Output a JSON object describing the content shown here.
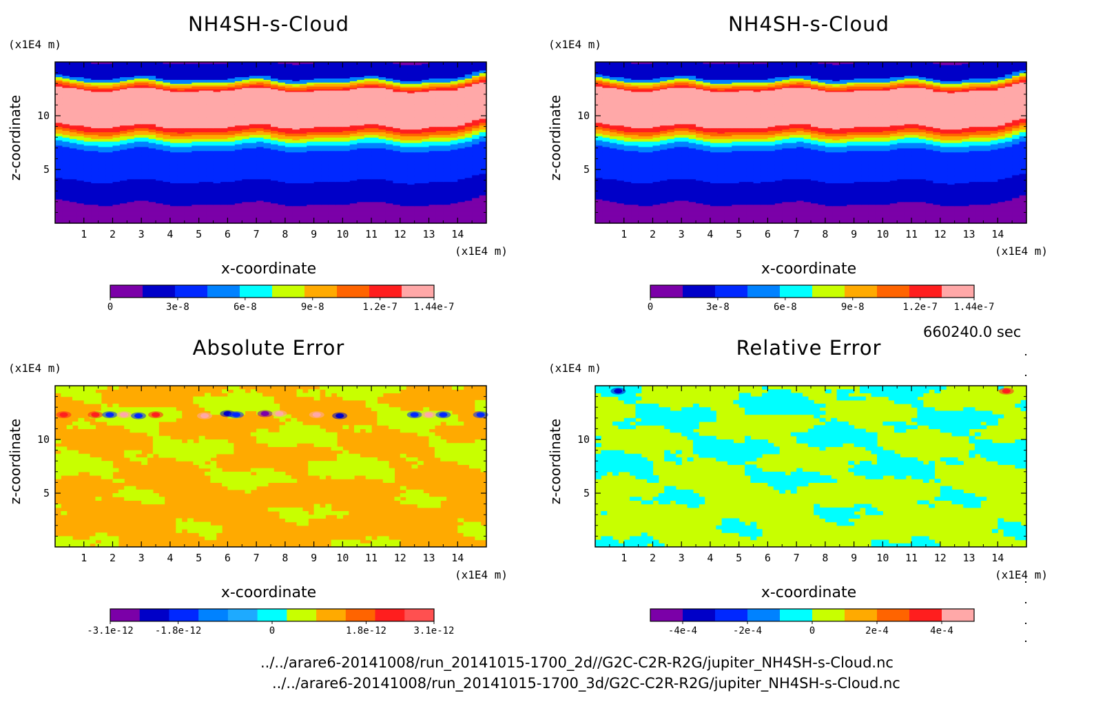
{
  "time_label": "660240.0 sec",
  "file_paths": [
    "../../arare6-20141008/run_20141015-1700_2d//G2C-C2R-R2G/jupiter_NH4SH-s-Cloud.nc",
    "../../arare6-20141008/run_20141015-1700_3d/G2C-C2R-R2G/jupiter_NH4SH-s-Cloud.nc"
  ],
  "colors": {
    "levels10": [
      "#7b00a8",
      "#0000c8",
      "#0028ff",
      "#0082ff",
      "#00ffff",
      "#c8ff00",
      "#ffaa00",
      "#ff6400",
      "#ff1e1e",
      "#ffa8a8"
    ],
    "levels11": [
      "#7b00a8",
      "#0000c8",
      "#0028ff",
      "#0082ff",
      "#1eaaff",
      "#00ffff",
      "#c8ff00",
      "#ffaa00",
      "#ff6400",
      "#ff1e1e",
      "#ff5050"
    ]
  },
  "chart_data": [
    {
      "type": "heatmap",
      "title": "NH4SH-s-Cloud",
      "xlabel": "x-coordinate",
      "ylabel": "z-coordinate",
      "x_unit": "(x1E4 m)",
      "z_unit": "(x1E4 m)",
      "xlim": [
        0,
        15
      ],
      "ylim": [
        0,
        15
      ],
      "x_ticks": [
        "1",
        "2",
        "3",
        "4",
        "5",
        "6",
        "7",
        "8",
        "9",
        "10",
        "11",
        "12",
        "13",
        "14"
      ],
      "y_ticks": [
        "5",
        "10"
      ],
      "colorbar_ticks": [
        "0",
        "3e-8",
        "6e-8",
        "9e-8",
        "1.2e-7",
        "1.44e-7"
      ],
      "colorbar_range": [
        0,
        1.44e-07
      ],
      "profile_z": [
        0,
        1.5,
        1.8,
        3.5,
        3.9,
        6.0,
        6.8,
        7.3,
        7.7,
        8.0,
        8.3,
        8.6,
        9.0,
        12.0,
        12.4,
        12.6,
        12.8,
        13.0,
        13.2,
        13.5,
        15
      ],
      "profile_level": [
        0,
        0,
        1,
        1,
        2,
        2,
        3,
        4,
        5,
        6,
        7,
        8,
        9,
        9,
        8,
        7,
        6,
        5,
        3,
        1,
        0
      ]
    },
    {
      "type": "heatmap",
      "title": "NH4SH-s-Cloud",
      "xlabel": "x-coordinate",
      "ylabel": "z-coordinate",
      "x_unit": "(x1E4 m)",
      "z_unit": "(x1E4 m)",
      "xlim": [
        0,
        15
      ],
      "ylim": [
        0,
        15
      ],
      "x_ticks": [
        "1",
        "2",
        "3",
        "4",
        "5",
        "6",
        "7",
        "8",
        "9",
        "10",
        "11",
        "12",
        "13",
        "14"
      ],
      "y_ticks": [
        "5",
        "10"
      ],
      "colorbar_ticks": [
        "0",
        "3e-8",
        "6e-8",
        "9e-8",
        "1.2e-7",
        "1.44e-7"
      ],
      "colorbar_range": [
        0,
        1.44e-07
      ],
      "profile_z": [
        0,
        1.5,
        1.8,
        3.5,
        3.9,
        6.0,
        6.8,
        7.3,
        7.7,
        8.0,
        8.3,
        8.6,
        9.0,
        12.0,
        12.4,
        12.6,
        12.8,
        13.0,
        13.2,
        13.5,
        15
      ],
      "profile_level": [
        0,
        0,
        1,
        1,
        2,
        2,
        3,
        4,
        5,
        6,
        7,
        8,
        9,
        9,
        8,
        7,
        6,
        5,
        3,
        1,
        0
      ]
    },
    {
      "type": "heatmap",
      "title": "Absolute Error",
      "xlabel": "x-coordinate",
      "ylabel": "z-coordinate",
      "x_unit": "(x1E4 m)",
      "z_unit": "(x1E4 m)",
      "xlim": [
        0,
        15
      ],
      "ylim": [
        0,
        15
      ],
      "x_ticks": [
        "1",
        "2",
        "3",
        "4",
        "5",
        "6",
        "7",
        "8",
        "9",
        "10",
        "11",
        "12",
        "13",
        "14"
      ],
      "y_ticks": [
        "5",
        "10"
      ],
      "colorbar_ticks": [
        "-3.1e-12",
        "-1.8e-12",
        "0",
        "1.8e-12",
        "3.1e-12"
      ],
      "colorbar_range": [
        -3.1e-12,
        3.1e-12
      ],
      "background_level": 6,
      "patch_level": 5,
      "seed": 7,
      "extremes": [
        {
          "x": 0.3,
          "z": 12.3,
          "level": 8
        },
        {
          "x": 1.4,
          "z": 12.3,
          "level": 8
        },
        {
          "x": 1.9,
          "z": 12.3,
          "level": 2
        },
        {
          "x": 2.4,
          "z": 12.3,
          "level": 9
        },
        {
          "x": 2.9,
          "z": 12.2,
          "level": 2
        },
        {
          "x": 3.5,
          "z": 12.3,
          "level": 8
        },
        {
          "x": 5.2,
          "z": 12.2,
          "level": 9
        },
        {
          "x": 6.0,
          "z": 12.4,
          "level": 1
        },
        {
          "x": 6.3,
          "z": 12.3,
          "level": 2
        },
        {
          "x": 7.3,
          "z": 12.4,
          "level": 0
        },
        {
          "x": 7.8,
          "z": 12.4,
          "level": 9
        },
        {
          "x": 9.1,
          "z": 12.3,
          "level": 9
        },
        {
          "x": 9.9,
          "z": 12.2,
          "level": 1
        },
        {
          "x": 12.5,
          "z": 12.3,
          "level": 2
        },
        {
          "x": 13.0,
          "z": 12.3,
          "level": 9
        },
        {
          "x": 13.5,
          "z": 12.3,
          "level": 2
        },
        {
          "x": 14.8,
          "z": 12.3,
          "level": 2
        }
      ]
    },
    {
      "type": "heatmap",
      "title": "Relative Error",
      "xlabel": "x-coordinate",
      "ylabel": "z-coordinate",
      "x_unit": "(x1E4 m)",
      "z_unit": "(x1E4 m)",
      "xlim": [
        0,
        15
      ],
      "ylim": [
        0,
        15
      ],
      "x_ticks": [
        "1",
        "2",
        "3",
        "4",
        "5",
        "6",
        "7",
        "8",
        "9",
        "10",
        "11",
        "12",
        "13",
        "14"
      ],
      "y_ticks": [
        "5",
        "10"
      ],
      "colorbar_ticks": [
        "-4e-4",
        "-2e-4",
        "0",
        "2e-4",
        "4e-4"
      ],
      "colorbar_range": [
        -0.0005,
        0.0005
      ],
      "background_level": 5,
      "patch_level": 4,
      "seed": 13,
      "extremes": [
        {
          "x": 0.8,
          "z": 14.5,
          "level": 1
        },
        {
          "x": 14.3,
          "z": 14.5,
          "level": 8
        }
      ]
    }
  ]
}
